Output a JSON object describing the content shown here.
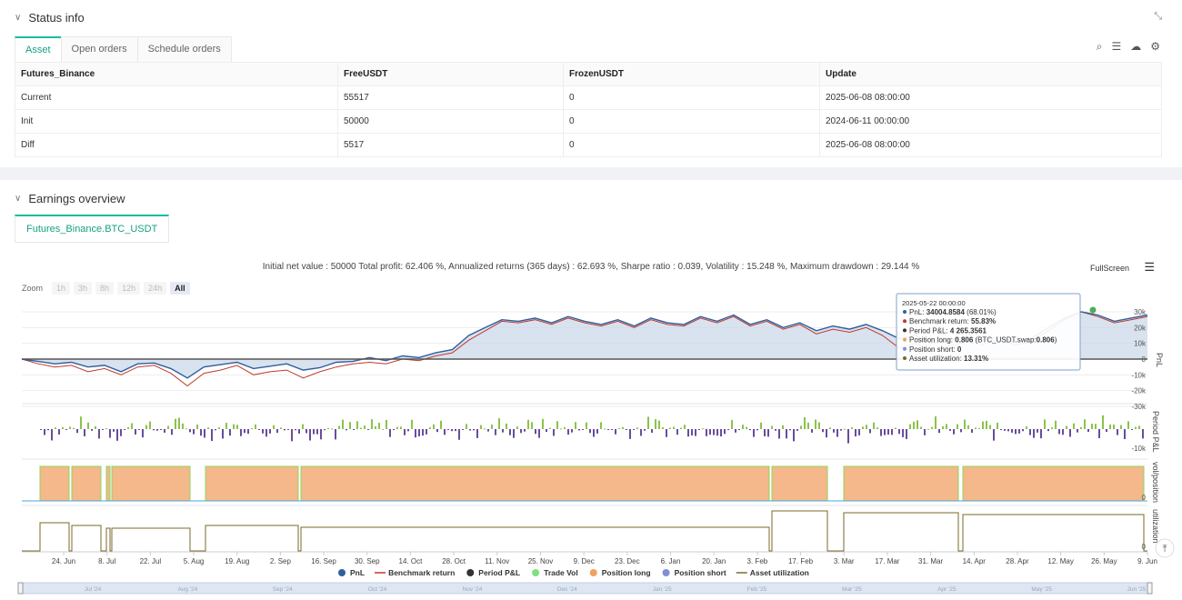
{
  "status": {
    "title": "Status info",
    "tabs": [
      "Asset",
      "Open orders",
      "Schedule orders"
    ],
    "columns": [
      "Futures_Binance",
      "FreeUSDT",
      "FrozenUSDT",
      "Update"
    ],
    "rows": [
      {
        "name": "Current",
        "free": "55517",
        "frozen": "0",
        "update": "2025-06-08 08:00:00"
      },
      {
        "name": "Init",
        "free": "50000",
        "frozen": "0",
        "update": "2024-06-11 00:00:00"
      },
      {
        "name": "Diff",
        "free": "5517",
        "frozen": "0",
        "update": "2025-06-08 08:00:00"
      }
    ]
  },
  "earnings": {
    "title": "Earnings overview",
    "tab": "Futures_Binance.BTC_USDT",
    "summary": "Initial net value : 50000 Total profit: 62.406 %, Annualized returns (365 days) : 62.693 %, Sharpe ratio : 0.039, Volatility : 15.248 %, Maximum drawdown : 29.144 %",
    "fullscreen_label": "FullScreen",
    "zoom_label": "Zoom",
    "zoom_buttons": [
      "1h",
      "3h",
      "8h",
      "12h",
      "24h",
      "All"
    ],
    "tooltip": {
      "date": "2025-05-22 00:00:00",
      "lines": [
        {
          "label": "PnL: ",
          "value": "34004.8584",
          "suffix": " (68.01%)",
          "color": "#2f5f9e"
        },
        {
          "label": "Benchmark return: ",
          "value": "55.83%",
          "suffix": "",
          "color": "#c0392b"
        },
        {
          "label": "Period P&L: ",
          "value": "4 265.3561",
          "suffix": "",
          "color": "#333333"
        },
        {
          "label": "Position long: ",
          "value": "0.806",
          "suffix": " (BTC_USDT.swap:",
          "suffix_bold": "0.806",
          "suffix_end": ")",
          "color": "#f0a060"
        },
        {
          "label": "Position short: ",
          "value": "0",
          "suffix": "",
          "color": "#7f8fd8"
        },
        {
          "label": "Asset utilization: ",
          "value": "13.31%",
          "suffix": "",
          "color": "#7a6a2a"
        }
      ]
    }
  },
  "chart_data": {
    "type": "line",
    "x_ticks": [
      "24. Jun",
      "8. Jul",
      "22. Jul",
      "5. Aug",
      "19. Aug",
      "2. Sep",
      "16. Sep",
      "30. Sep",
      "14. Oct",
      "28. Oct",
      "11. Nov",
      "25. Nov",
      "9. Dec",
      "23. Dec",
      "6. Jan",
      "20. Jan",
      "3. Feb",
      "17. Feb",
      "3. Mar",
      "17. Mar",
      "31. Mar",
      "14. Apr",
      "28. Apr",
      "12. May",
      "26. May",
      "9. Jun"
    ],
    "navigator_ticks": [
      "Jul '24",
      "Aug '24",
      "Sep '24",
      "Oct '24",
      "Nov '24",
      "Dec '24",
      "Jan '25",
      "Feb '25",
      "Mar '25",
      "Apr '25",
      "May '25",
      "Jun '25"
    ],
    "pnl_axis": {
      "label": "PnL",
      "ticks": [
        "30k",
        "20k",
        "10k",
        "0",
        "-10k",
        "-20k",
        "-30k"
      ],
      "ylim": [
        -30000,
        30000
      ]
    },
    "period_axis": {
      "label": "Period P&L",
      "ticks": [
        "-10k"
      ]
    },
    "position_axis": {
      "label": "vol/position",
      "ticks": [
        "0"
      ]
    },
    "util_axis": {
      "label": "utilization",
      "ticks": [
        "0"
      ]
    },
    "pnl_series": [
      [
        0,
        0
      ],
      [
        4,
        -1500
      ],
      [
        8,
        -3000
      ],
      [
        12,
        -2000
      ],
      [
        16,
        -5000
      ],
      [
        20,
        -4000
      ],
      [
        24,
        -8000
      ],
      [
        28,
        -3000
      ],
      [
        32,
        -2500
      ],
      [
        36,
        -6000
      ],
      [
        40,
        -12000
      ],
      [
        44,
        -5000
      ],
      [
        48,
        -3500
      ],
      [
        52,
        -2000
      ],
      [
        56,
        -6000
      ],
      [
        60,
        -4500
      ],
      [
        64,
        -3000
      ],
      [
        68,
        -7000
      ],
      [
        72,
        -5500
      ],
      [
        76,
        -2000
      ],
      [
        80,
        -1500
      ],
      [
        84,
        1000
      ],
      [
        88,
        -1000
      ],
      [
        92,
        2000
      ],
      [
        96,
        1000
      ],
      [
        100,
        4000
      ],
      [
        104,
        6000
      ],
      [
        108,
        15000
      ],
      [
        112,
        20000
      ],
      [
        116,
        25000
      ],
      [
        120,
        24000
      ],
      [
        124,
        26000
      ],
      [
        128,
        23000
      ],
      [
        132,
        27000
      ],
      [
        136,
        24000
      ],
      [
        140,
        22000
      ],
      [
        144,
        25000
      ],
      [
        148,
        21000
      ],
      [
        152,
        26000
      ],
      [
        156,
        23000
      ],
      [
        160,
        22000
      ],
      [
        164,
        27000
      ],
      [
        168,
        24000
      ],
      [
        172,
        28000
      ],
      [
        176,
        22000
      ],
      [
        180,
        25000
      ],
      [
        184,
        20000
      ],
      [
        188,
        23000
      ],
      [
        192,
        18000
      ],
      [
        196,
        21000
      ],
      [
        200,
        19000
      ],
      [
        204,
        22000
      ],
      [
        208,
        18000
      ],
      [
        212,
        13000
      ],
      [
        216,
        15000
      ],
      [
        220,
        10000
      ],
      [
        224,
        12000
      ],
      [
        228,
        14000
      ],
      [
        232,
        12000
      ],
      [
        236,
        14000
      ],
      [
        240,
        11000
      ],
      [
        244,
        13000
      ],
      [
        248,
        20000
      ],
      [
        252,
        26000
      ],
      [
        256,
        30000
      ],
      [
        260,
        28000
      ],
      [
        264,
        24000
      ],
      [
        268,
        26000
      ],
      [
        272,
        28000
      ]
    ],
    "benchmark_series": [
      [
        0,
        0
      ],
      [
        4,
        -3000
      ],
      [
        8,
        -5000
      ],
      [
        12,
        -4000
      ],
      [
        16,
        -8000
      ],
      [
        20,
        -6000
      ],
      [
        24,
        -10000
      ],
      [
        28,
        -5000
      ],
      [
        32,
        -4000
      ],
      [
        36,
        -9000
      ],
      [
        40,
        -17000
      ],
      [
        44,
        -9000
      ],
      [
        48,
        -7000
      ],
      [
        52,
        -4000
      ],
      [
        56,
        -10000
      ],
      [
        60,
        -8000
      ],
      [
        64,
        -7000
      ],
      [
        68,
        -12000
      ],
      [
        72,
        -8000
      ],
      [
        76,
        -5000
      ],
      [
        80,
        -3000
      ],
      [
        84,
        -2000
      ],
      [
        88,
        -3000
      ],
      [
        92,
        0
      ],
      [
        96,
        -1000
      ],
      [
        100,
        2000
      ],
      [
        104,
        4000
      ],
      [
        108,
        12000
      ],
      [
        112,
        18000
      ],
      [
        116,
        24000
      ],
      [
        120,
        23000
      ],
      [
        124,
        25000
      ],
      [
        128,
        22000
      ],
      [
        132,
        26000
      ],
      [
        136,
        23000
      ],
      [
        140,
        21000
      ],
      [
        144,
        24000
      ],
      [
        148,
        20000
      ],
      [
        152,
        25000
      ],
      [
        156,
        22000
      ],
      [
        160,
        21000
      ],
      [
        164,
        26000
      ],
      [
        168,
        23000
      ],
      [
        172,
        27000
      ],
      [
        176,
        21000
      ],
      [
        180,
        24000
      ],
      [
        184,
        19000
      ],
      [
        188,
        22000
      ],
      [
        192,
        16000
      ],
      [
        196,
        19000
      ],
      [
        200,
        17000
      ],
      [
        204,
        20000
      ],
      [
        208,
        15000
      ],
      [
        212,
        7000
      ],
      [
        216,
        10000
      ],
      [
        220,
        5000
      ],
      [
        224,
        8000
      ],
      [
        228,
        11000
      ],
      [
        232,
        9000
      ],
      [
        236,
        12000
      ],
      [
        240,
        9000
      ],
      [
        244,
        11000
      ],
      [
        248,
        18000
      ],
      [
        252,
        25000
      ],
      [
        256,
        30000
      ],
      [
        260,
        27000
      ],
      [
        264,
        23000
      ],
      [
        268,
        25000
      ],
      [
        272,
        27000
      ]
    ],
    "position_blocks": [
      [
        0,
        0.0
      ],
      [
        1,
        1
      ],
      [
        3,
        1
      ]
    ],
    "legend": [
      {
        "name": "PnL",
        "color": "#2f5f9e",
        "kind": "dot"
      },
      {
        "name": "Benchmark return",
        "color": "#c0392b",
        "kind": "line"
      },
      {
        "name": "Period P&L",
        "color": "#333333",
        "kind": "dot"
      },
      {
        "name": "Trade Vol",
        "color": "#7ee07e",
        "kind": "dot"
      },
      {
        "name": "Position long",
        "color": "#f0a060",
        "kind": "dot"
      },
      {
        "name": "Position short",
        "color": "#7f8fd8",
        "kind": "dot"
      },
      {
        "name": "Asset utilization",
        "color": "#7a6a2a",
        "kind": "line"
      }
    ]
  }
}
